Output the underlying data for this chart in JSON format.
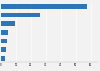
{
  "values": [
    57.5,
    26.0,
    9.5,
    5.0,
    3.8,
    3.2,
    2.8
  ],
  "bar_color": "#2e75b6",
  "background_color": "#f2f2f2",
  "xlim": [
    0,
    65
  ],
  "figsize": [
    1.0,
    0.71
  ],
  "dpi": 100
}
